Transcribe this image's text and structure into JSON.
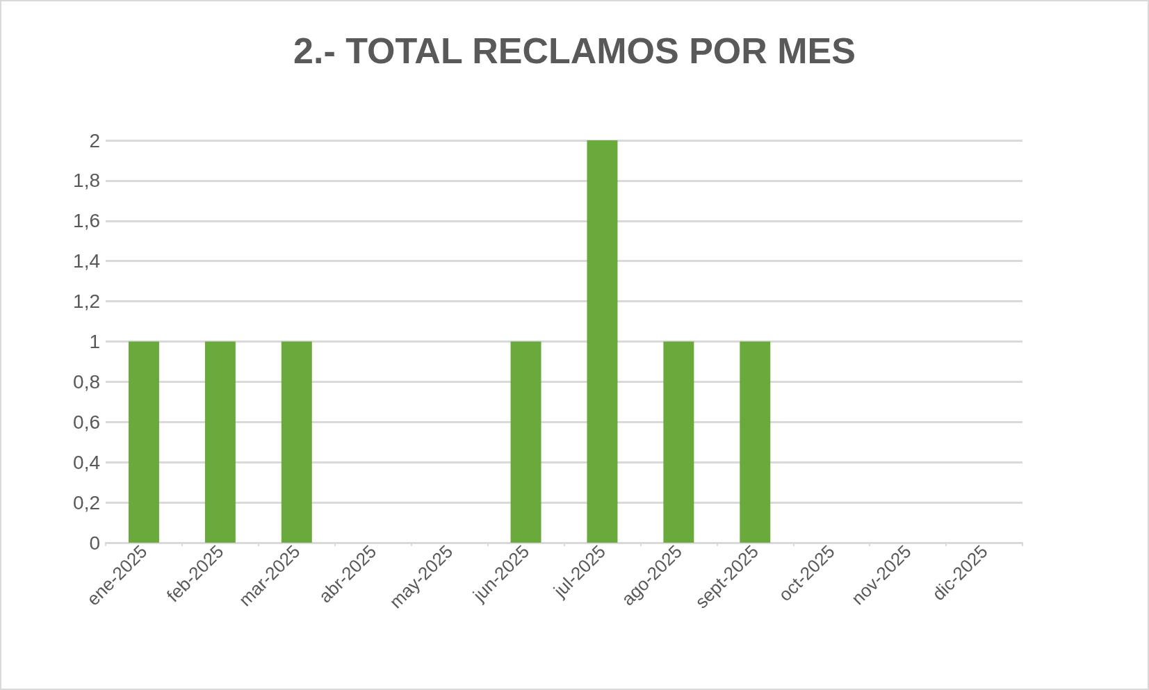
{
  "chart_data": {
    "type": "bar",
    "title": "2.- TOTAL RECLAMOS POR MES",
    "categories": [
      "ene-2025",
      "feb-2025",
      "mar-2025",
      "abr-2025",
      "may-2025",
      "jun-2025",
      "jul-2025",
      "ago-2025",
      "sept-2025",
      "oct-2025",
      "nov-2025",
      "dic-2025"
    ],
    "values": [
      1,
      1,
      1,
      0,
      0,
      1,
      2,
      1,
      1,
      null,
      null,
      null
    ],
    "color": "#6aaa3c",
    "ylim": [
      0,
      2
    ],
    "yticks": [
      0,
      {
        "value": 0.2,
        "label": "0,2"
      },
      {
        "value": 0.4,
        "label": "0,4"
      },
      {
        "value": 0.6,
        "label": "0,6"
      },
      {
        "value": 0.8,
        "label": "0,8"
      },
      1,
      {
        "value": 1.2,
        "label": "1,2"
      },
      {
        "value": 1.4,
        "label": "1,4"
      },
      {
        "value": 1.6,
        "label": "1,6"
      },
      {
        "value": 1.8,
        "label": "1,8"
      },
      2
    ],
    "grid": "y"
  }
}
